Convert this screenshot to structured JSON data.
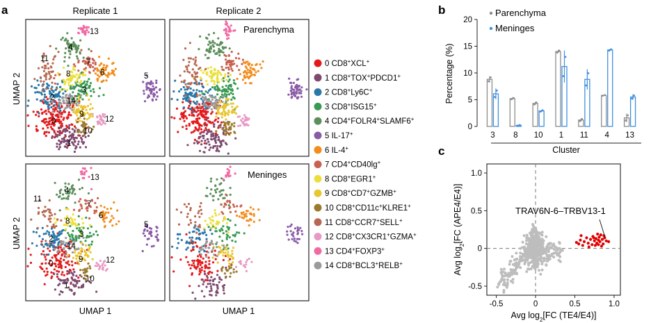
{
  "panel_labels": {
    "a": "a",
    "b": "b",
    "c": "c"
  },
  "umap": {
    "col_titles": [
      "Replicate 1",
      "Replicate 2"
    ],
    "tissue_labels": {
      "top": "Parenchyma",
      "bottom": "Meninges"
    },
    "axis_x": "UMAP 1",
    "axis_y": "UMAP 2",
    "cluster_numbers": [
      "0",
      "1",
      "2",
      "3",
      "4",
      "5",
      "6",
      "7",
      "8",
      "9",
      "10",
      "11",
      "12",
      "13",
      "14"
    ],
    "legend": [
      {
        "num": "0",
        "parts": [
          [
            "CD8",
            "+"
          ],
          [
            "XCL",
            "+"
          ]
        ],
        "color": "#e31a1c"
      },
      {
        "num": "1",
        "parts": [
          [
            "CD8",
            "+"
          ],
          [
            "TOX",
            "+"
          ],
          [
            "PDCD1",
            "+"
          ]
        ],
        "color": "#7d4a6f"
      },
      {
        "num": "2",
        "parts": [
          [
            "CD8",
            "+"
          ],
          [
            "Ly6C",
            "+"
          ]
        ],
        "color": "#2878a8"
      },
      {
        "num": "3",
        "parts": [
          [
            "CD8",
            "+"
          ],
          [
            "ISG15",
            "+"
          ]
        ],
        "color": "#3a9a52"
      },
      {
        "num": "4",
        "parts": [
          [
            "CD4",
            "+"
          ],
          [
            "FOLR4",
            "+"
          ],
          [
            "SLAMF6",
            "+"
          ]
        ],
        "color": "#5c8f5a"
      },
      {
        "num": "5",
        "parts": [
          [
            "IL-17",
            "+"
          ]
        ],
        "color": "#8a5aa6"
      },
      {
        "num": "6",
        "parts": [
          [
            "IL-4",
            "+"
          ]
        ],
        "color": "#f28c1c"
      },
      {
        "num": "7",
        "parts": [
          [
            "CD4",
            "+"
          ],
          [
            "CD40lg",
            "+"
          ]
        ],
        "color": "#c8614f"
      },
      {
        "num": "8",
        "parts": [
          [
            "CD8",
            "+"
          ],
          [
            "EGR1",
            "+"
          ]
        ],
        "color": "#ecdf3c"
      },
      {
        "num": "9",
        "parts": [
          [
            "CD8",
            "+"
          ],
          [
            "CD7",
            "+"
          ],
          [
            "GZMB",
            "+"
          ]
        ],
        "color": "#e8c630"
      },
      {
        "num": "10",
        "parts": [
          [
            "CD8",
            "+"
          ],
          [
            "CD11c",
            "+"
          ],
          [
            "KLRE1",
            "+"
          ]
        ],
        "color": "#9b7a2e"
      },
      {
        "num": "11",
        "parts": [
          [
            "CD8",
            "+"
          ],
          [
            "CCR7",
            "+"
          ],
          [
            "SELL",
            "+"
          ]
        ],
        "color": "#b86850"
      },
      {
        "num": "12",
        "parts": [
          [
            "CD8",
            "+"
          ],
          [
            "CX3CR1",
            "+"
          ],
          [
            "GZMA",
            "+"
          ]
        ],
        "color": "#e79ac4"
      },
      {
        "num": "13",
        "parts": [
          [
            "CD4",
            "+"
          ],
          [
            "FOXP3",
            "+"
          ]
        ],
        "color": "#f06aa4"
      },
      {
        "num": "14",
        "parts": [
          [
            "CD8",
            "+"
          ],
          [
            "BCL3",
            "+"
          ],
          [
            "RELB",
            "+"
          ]
        ],
        "color": "#9a9a9a"
      }
    ]
  },
  "chart_data": [
    {
      "type": "bar",
      "panel": "b",
      "categories": [
        "3",
        "8",
        "10",
        "1",
        "11",
        "4",
        "13"
      ],
      "xlabel": "Cluster",
      "ylabel": "Percentage (%)",
      "ylim": [
        0,
        20
      ],
      "yticks": [
        "0",
        "5",
        "10",
        "15",
        "20"
      ],
      "legend_position": "top-left",
      "series": [
        {
          "name": "Parenchyma",
          "color": "#8c8c8c",
          "values": [
            8.8,
            5.2,
            4.3,
            14.0,
            1.2,
            5.8,
            1.6
          ],
          "errors": [
            0.6,
            0.2,
            0.3,
            0.3,
            0.3,
            0.1,
            0.8
          ]
        },
        {
          "name": "Meninges",
          "color": "#3f8fe0",
          "values": [
            6.1,
            0.2,
            2.9,
            11.2,
            8.8,
            14.3,
            5.5
          ],
          "errors": [
            1.0,
            0.1,
            0.2,
            3.0,
            1.9,
            0.2,
            0.5
          ]
        }
      ]
    },
    {
      "type": "scatter",
      "panel": "c",
      "xlabel_parts": [
        "Avg log",
        "2",
        "[FC (TE4/E4)]"
      ],
      "ylabel_parts": [
        "Avg log",
        "2",
        "[FC (APE4/E4)]"
      ],
      "xlim": [
        -0.62,
        1.08
      ],
      "ylim": [
        -0.62,
        1.12
      ],
      "xticks": [
        "-0.5",
        "0",
        "0.5",
        "1.0"
      ],
      "yticks": [
        "-0.5",
        "0",
        "0.5",
        "1.0"
      ],
      "annotation": "TRAV6N-6–TRBV13-1",
      "grey_color": "#bdbdbd",
      "highlight_color": "#e00000",
      "highlight": [
        [
          0.52,
          0.08
        ],
        [
          0.55,
          0.06
        ],
        [
          0.57,
          0.11
        ],
        [
          0.6,
          0.04
        ],
        [
          0.62,
          0.09
        ],
        [
          0.65,
          0.14
        ],
        [
          0.67,
          0.07
        ],
        [
          0.7,
          0.12
        ],
        [
          0.72,
          0.05
        ],
        [
          0.73,
          0.16
        ],
        [
          0.75,
          0.1
        ],
        [
          0.77,
          0.13
        ],
        [
          0.78,
          0.07
        ],
        [
          0.8,
          0.11
        ],
        [
          0.81,
          0.15
        ],
        [
          0.82,
          0.09
        ],
        [
          0.83,
          0.18
        ],
        [
          0.85,
          0.12
        ],
        [
          0.86,
          0.06
        ],
        [
          0.88,
          0.14
        ],
        [
          0.9,
          0.1
        ],
        [
          0.93,
          0.09
        ],
        [
          0.79,
          0.19
        ],
        [
          0.76,
          0.04
        ],
        [
          0.84,
          0.03
        ],
        [
          0.58,
          0.17
        ],
        [
          0.68,
          0.02
        ],
        [
          0.87,
          0.17
        ],
        [
          0.74,
          0.14
        ],
        [
          0.8,
          0.05
        ]
      ]
    }
  ]
}
